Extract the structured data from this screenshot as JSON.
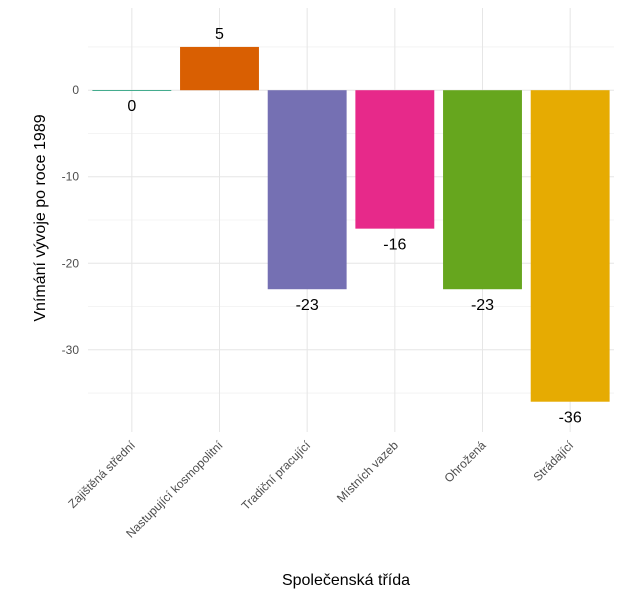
{
  "chart_data": {
    "type": "bar",
    "xlabel": "Společenská třída",
    "ylabel": "Vnímání vývoje po roce 1989",
    "categories": [
      "Zajištěná střední",
      "Nastupující kosmopolitní",
      "Tradiční pracující",
      "Místních vazeb",
      "Ohrožená",
      "Strádající"
    ],
    "values": [
      0,
      5,
      -23,
      -16,
      -23,
      -36
    ],
    "colors": [
      "#1b9e77",
      "#d95f02",
      "#7570b3",
      "#e7298a",
      "#66a61e",
      "#e6ab02"
    ],
    "data_labels": [
      "0",
      "5",
      "-23",
      "-16",
      "-23",
      "-36"
    ],
    "ylim": [
      -39.5,
      9.5
    ],
    "yticks": [
      0,
      -10,
      -20,
      -30
    ],
    "ytick_labels": [
      "0",
      "-10",
      "-20",
      "-30"
    ],
    "grid": true,
    "legend": "none"
  }
}
